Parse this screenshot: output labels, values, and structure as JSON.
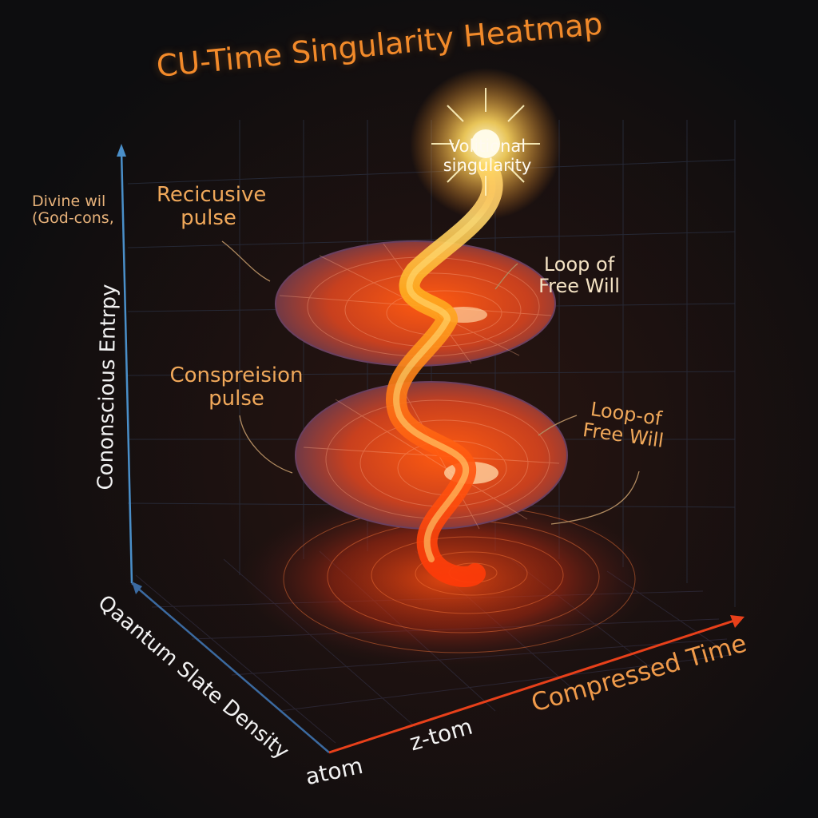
{
  "title": "CU-Time Singularity Heatmap",
  "axes": {
    "vertical": "Cononscious Entrpy",
    "depth": "Qaantum Slate Density",
    "horizontal": "Compressed Time",
    "tick_near": "z-tom",
    "tick_origin": "atom"
  },
  "annotations": {
    "divine_line1": "Divine wil",
    "divine_line2": "(God-cons,",
    "recursive_line1": "Recicusive",
    "recursive_line2": "pulse",
    "volitional_line1": "Volitional",
    "volitional_line2": "singularity",
    "loop_upper_line1": "Loop of",
    "loop_upper_line2": "Free Will",
    "compression_line1": "Conspreision",
    "compression_line2": "pulse",
    "loop_lower_line1": "Loop-of",
    "loop_lower_line2": "Free Will"
  },
  "colors": {
    "background": "#0d0d0f",
    "title": "#f28a2a",
    "spiral_core": "#ff5a12",
    "spiral_edge": "#5a3850",
    "glow": "#ffe27a",
    "vertical_axis": "#4a8fc9",
    "time_axis": "#e8401a"
  }
}
